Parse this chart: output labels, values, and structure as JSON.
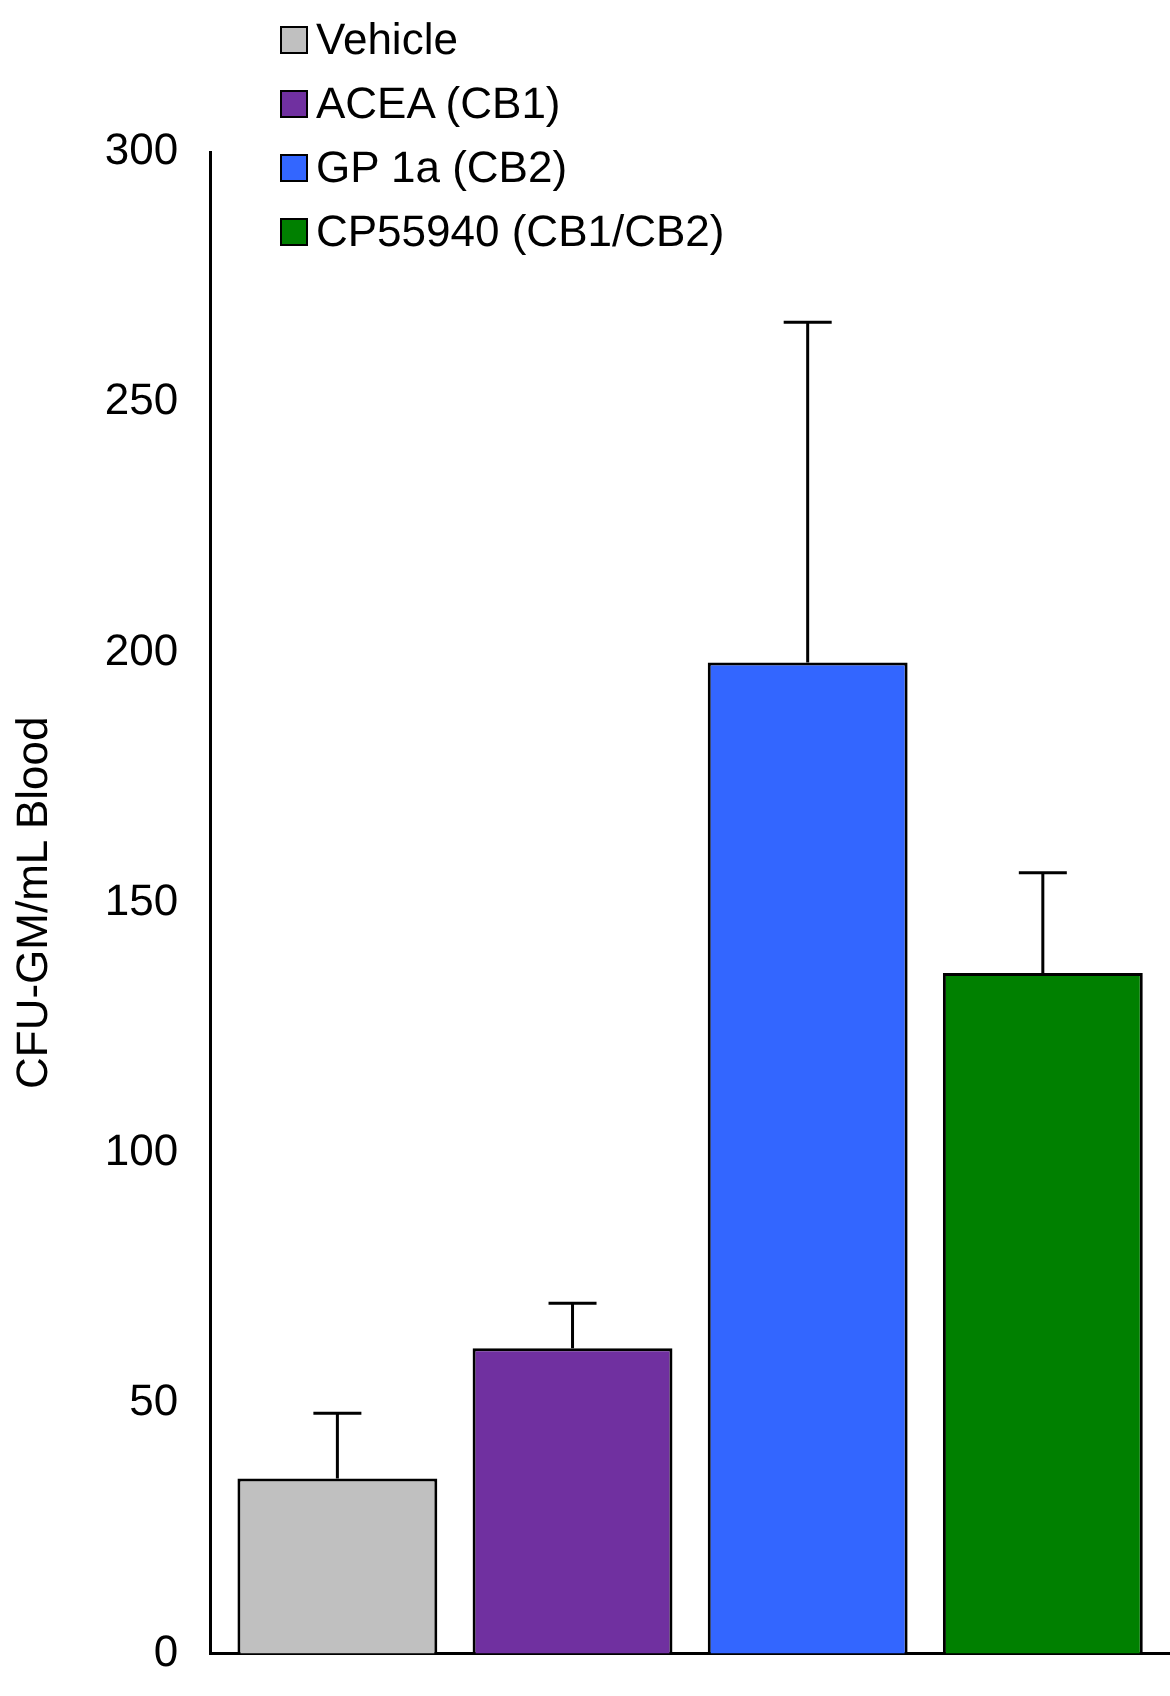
{
  "chart_data": {
    "type": "bar",
    "ylabel": "CFU-GM/mL Blood",
    "categories": [
      null
    ],
    "series": [
      {
        "name": "Vehicle",
        "color": "#c0c0c0",
        "values": [
          35
        ],
        "errors": [
          [
            35,
            48
          ]
        ]
      },
      {
        "name": "ACEA (CB1)",
        "color": "#7030a0",
        "values": [
          61
        ],
        "errors": [
          [
            61,
            70
          ]
        ]
      },
      {
        "name": "GP 1a (CB2)",
        "color": "#3366ff",
        "values": [
          198
        ],
        "errors": [
          [
            198,
            266
          ]
        ]
      },
      {
        "name": "CP55940 (CB1/CB2)",
        "color": "#008000",
        "values": [
          136
        ],
        "errors": [
          [
            136,
            156
          ]
        ]
      }
    ],
    "ylim": [
      0,
      300
    ],
    "yticks": [
      0,
      50,
      100,
      150,
      200,
      250,
      300
    ],
    "grid": false,
    "legend": "top left"
  }
}
